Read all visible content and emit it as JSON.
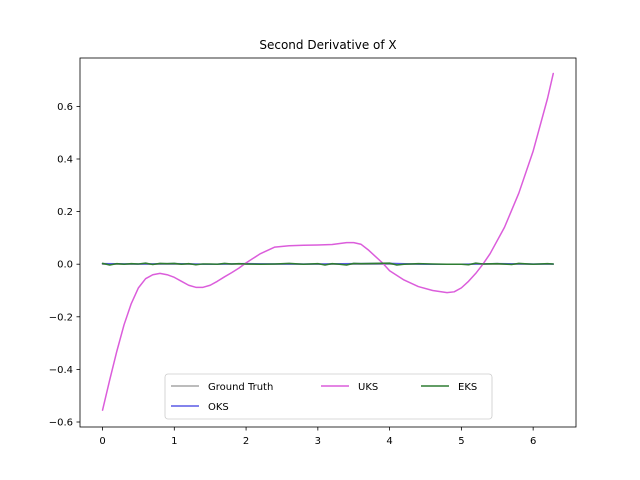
{
  "chart_data": {
    "type": "line",
    "title": "Second Derivative of X",
    "xlabel": "",
    "ylabel": "",
    "xlim": [
      -0.314,
      6.597
    ],
    "ylim": [
      -0.619,
      0.784
    ],
    "x_ticks": [
      0,
      1,
      2,
      3,
      4,
      5,
      6
    ],
    "y_ticks": [
      -0.6,
      -0.4,
      -0.2,
      0.0,
      0.2,
      0.4,
      0.6
    ],
    "x_tick_labels": [
      "0",
      "1",
      "2",
      "3",
      "4",
      "5",
      "6"
    ],
    "y_tick_labels": [
      "−0.6",
      "−0.4",
      "−0.2",
      "0.0",
      "0.2",
      "0.4",
      "0.6"
    ],
    "grid": false,
    "legend_position": "lower center",
    "legend_columns": 3,
    "series": [
      {
        "name": "Ground Truth",
        "color": "#a6a6a6",
        "x": [
          0.0,
          0.5,
          1.0,
          1.5,
          2.0,
          2.5,
          3.0,
          3.5,
          4.0,
          4.5,
          5.0,
          5.5,
          6.0,
          6.28
        ],
        "y": [
          0.0,
          0.0,
          0.0,
          0.0,
          0.0,
          0.0,
          0.0,
          0.0,
          0.0,
          0.0,
          0.0,
          0.0,
          0.0,
          0.0
        ]
      },
      {
        "name": "OKS",
        "color": "#5a5ae6",
        "x": [
          0.0,
          0.5,
          1.0,
          1.5,
          2.0,
          2.5,
          3.0,
          3.5,
          4.0,
          4.5,
          5.0,
          5.5,
          6.0,
          6.28
        ],
        "y": [
          0.002,
          0.001,
          0.002,
          0.0,
          0.002,
          0.001,
          0.001,
          0.002,
          0.003,
          0.0,
          0.0,
          0.002,
          0.001,
          0.001
        ]
      },
      {
        "name": "UKS",
        "color": "#db5ddb",
        "x": [
          0.0,
          0.1,
          0.2,
          0.3,
          0.4,
          0.5,
          0.6,
          0.7,
          0.8,
          0.9,
          1.0,
          1.1,
          1.2,
          1.3,
          1.4,
          1.5,
          1.6,
          1.7,
          1.8,
          1.9,
          2.0,
          2.2,
          2.4,
          2.6,
          2.8,
          3.0,
          3.2,
          3.4,
          3.5,
          3.6,
          3.7,
          3.8,
          3.9,
          4.0,
          4.2,
          4.4,
          4.6,
          4.8,
          4.9,
          5.0,
          5.1,
          5.2,
          5.3,
          5.4,
          5.6,
          5.8,
          6.0,
          6.2,
          6.28
        ],
        "y": [
          -0.555,
          -0.44,
          -0.33,
          -0.23,
          -0.15,
          -0.09,
          -0.055,
          -0.04,
          -0.035,
          -0.04,
          -0.05,
          -0.065,
          -0.08,
          -0.088,
          -0.088,
          -0.08,
          -0.065,
          -0.048,
          -0.032,
          -0.015,
          0.005,
          0.04,
          0.065,
          0.07,
          0.072,
          0.073,
          0.075,
          0.082,
          0.082,
          0.076,
          0.055,
          0.03,
          0.005,
          -0.025,
          -0.06,
          -0.085,
          -0.1,
          -0.108,
          -0.105,
          -0.09,
          -0.065,
          -0.035,
          0.0,
          0.04,
          0.14,
          0.27,
          0.43,
          0.63,
          0.725
        ]
      },
      {
        "name": "EKS",
        "color": "#2e7d32",
        "x": [
          0.0,
          0.1,
          0.2,
          0.3,
          0.4,
          0.5,
          0.6,
          0.7,
          0.8,
          0.9,
          1.0,
          1.1,
          1.2,
          1.3,
          1.4,
          1.5,
          1.6,
          1.7,
          1.8,
          1.9,
          2.0,
          2.2,
          2.4,
          2.6,
          2.8,
          3.0,
          3.1,
          3.2,
          3.3,
          3.4,
          3.5,
          3.6,
          3.8,
          4.0,
          4.1,
          4.2,
          4.4,
          4.6,
          4.8,
          5.0,
          5.1,
          5.2,
          5.3,
          5.5,
          5.7,
          5.8,
          6.0,
          6.2,
          6.28
        ],
        "y": [
          0.003,
          -0.003,
          0.002,
          0.0,
          0.002,
          0.001,
          0.004,
          -0.001,
          0.003,
          0.002,
          0.003,
          0.0,
          0.002,
          -0.002,
          0.001,
          0.001,
          0.0,
          0.003,
          0.001,
          0.002,
          0.001,
          0.0,
          0.001,
          0.003,
          0.0,
          0.002,
          -0.003,
          0.002,
          0.0,
          -0.003,
          0.003,
          0.002,
          0.003,
          0.004,
          -0.003,
          0.0,
          0.002,
          0.001,
          0.0,
          0.0,
          -0.002,
          0.004,
          0.001,
          0.002,
          -0.001,
          0.003,
          0.0,
          0.002,
          0.001
        ]
      }
    ]
  }
}
